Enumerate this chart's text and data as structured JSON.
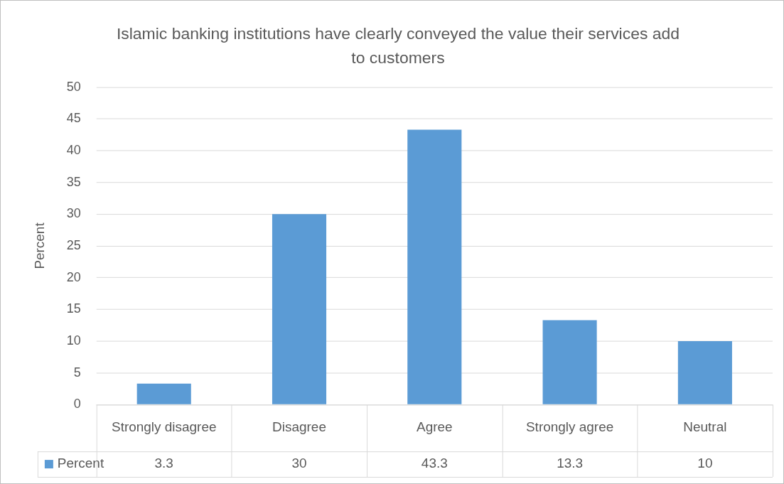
{
  "chart_data": {
    "type": "bar",
    "title": "Islamic banking institutions have clearly conveyed the value their services add to customers",
    "ylabel": "Percent",
    "categories": [
      "Strongly disagree",
      "Disagree",
      "Agree",
      "Strongly agree",
      "Neutral"
    ],
    "series": [
      {
        "name": "Percent",
        "color": "#5b9bd5",
        "values": [
          3.3,
          30,
          43.3,
          13.3,
          10
        ]
      }
    ],
    "ylim": [
      0,
      50
    ],
    "yticks": [
      0,
      5,
      10,
      15,
      20,
      25,
      30,
      35,
      40,
      45,
      50
    ],
    "grid": "y",
    "legend": "bottom",
    "data_labels": true
  }
}
